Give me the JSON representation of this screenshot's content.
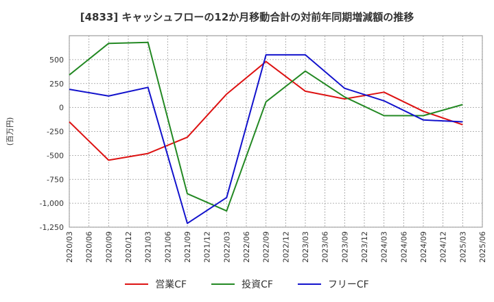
{
  "chart_data": {
    "type": "line",
    "title": "[4833]  キャッシュフローの12か月移動合計の対前年同期増減額の推移",
    "ylabel": "(百万円)",
    "ylim": [
      -1250,
      750
    ],
    "yticks": [
      500,
      250,
      0,
      -250,
      -500,
      -750,
      -1000,
      -1250
    ],
    "ytick_labels": [
      "500",
      "250",
      "0",
      "-250",
      "-500",
      "-750",
      "-1,000",
      "-1,250"
    ],
    "xticks": [
      "2020/03",
      "2020/06",
      "2020/09",
      "2020/12",
      "2021/03",
      "2021/06",
      "2021/09",
      "2021/12",
      "2022/03",
      "2022/06",
      "2022/09",
      "2022/12",
      "2023/03",
      "2023/06",
      "2023/09",
      "2023/12",
      "2024/03",
      "2024/06",
      "2024/09",
      "2024/12",
      "2025/03",
      "2025/06"
    ],
    "grid": true,
    "legend_position": "bottom",
    "series": [
      {
        "name": "営業CF",
        "color": "#dd1111",
        "x": [
          "2020/03",
          "2020/09",
          "2021/03",
          "2021/09",
          "2022/03",
          "2022/09",
          "2023/03",
          "2023/09",
          "2024/03",
          "2024/09",
          "2025/03"
        ],
        "values": [
          -150,
          -550,
          -480,
          -310,
          140,
          480,
          170,
          90,
          160,
          -40,
          -180
        ]
      },
      {
        "name": "投資CF",
        "color": "#228822",
        "x": [
          "2020/03",
          "2020/09",
          "2021/03",
          "2021/09",
          "2022/03",
          "2022/09",
          "2023/03",
          "2023/09",
          "2024/03",
          "2024/09",
          "2025/03"
        ],
        "values": [
          340,
          670,
          680,
          -900,
          -1080,
          60,
          380,
          110,
          -85,
          -85,
          30
        ]
      },
      {
        "name": "フリーCF",
        "color": "#1111cc",
        "x": [
          "2020/03",
          "2020/09",
          "2021/03",
          "2021/09",
          "2022/03",
          "2022/09",
          "2023/03",
          "2023/09",
          "2024/03",
          "2024/09",
          "2025/03"
        ],
        "values": [
          190,
          120,
          210,
          -1210,
          -940,
          550,
          550,
          200,
          70,
          -130,
          -150
        ]
      }
    ]
  }
}
